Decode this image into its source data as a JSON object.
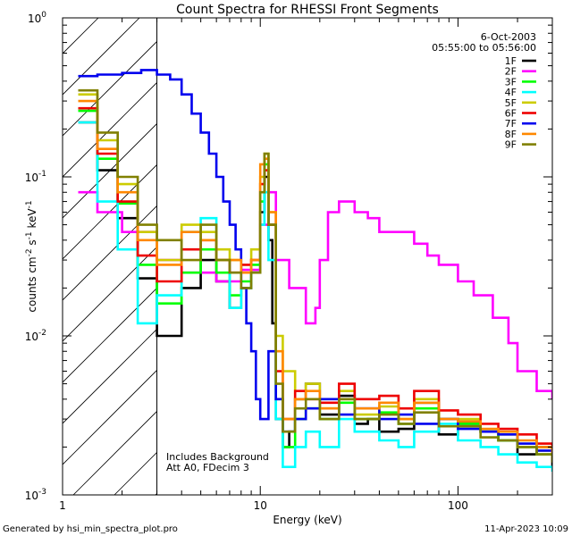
{
  "chart_data": {
    "type": "line",
    "title": "Count Spectra for RHESSI Front Segments",
    "xlabel": "Energy (keV)",
    "ylabel_parts": [
      "counts cm",
      "-2",
      " s",
      "-1",
      " keV",
      "-1"
    ],
    "xscale": "log",
    "yscale": "log",
    "xlim": [
      1,
      300
    ],
    "ylim": [
      0.001,
      1
    ],
    "x_ticks": [
      {
        "value": 1,
        "label": "1"
      },
      {
        "value": 10,
        "label": "10"
      },
      {
        "value": 100,
        "label": "100"
      }
    ],
    "y_ticks": [
      {
        "value": 0.001,
        "base": "10",
        "exp": "-3"
      },
      {
        "value": 0.01,
        "base": "10",
        "exp": "-2"
      },
      {
        "value": 0.1,
        "base": "10",
        "exp": "-1"
      },
      {
        "value": 1,
        "base": "10",
        "exp": "0"
      }
    ],
    "date": "6-Oct-2003",
    "time_range": "05:55:00 to 05:56:00",
    "attenuator_cutoff_keV": 3,
    "annotations": [
      "Includes Background",
      "Att A0, FDecim 3"
    ],
    "footer_left": "Generated by hsi_min_spectra_plot.pro",
    "footer_right": "11-Apr-2023 10:09",
    "legend_position": "top-right",
    "series": [
      {
        "name": "1F",
        "color": "#000000",
        "x": [
          1.2,
          1.5,
          1.9,
          2.4,
          3,
          4,
          5,
          6,
          7,
          8,
          9,
          10,
          10.5,
          11,
          11.5,
          12,
          13,
          14,
          15,
          17,
          20,
          25,
          30,
          35,
          40,
          50,
          60,
          80,
          100,
          130,
          160,
          200,
          250,
          300
        ],
        "values": [
          0.22,
          0.11,
          0.055,
          0.023,
          0.01,
          0.02,
          0.03,
          0.022,
          0.015,
          0.02,
          0.025,
          0.06,
          0.1,
          0.04,
          0.012,
          0.003,
          0.002,
          0.0025,
          0.004,
          0.005,
          0.0032,
          0.0042,
          0.0028,
          0.003,
          0.0025,
          0.0026,
          0.0038,
          0.0024,
          0.0028,
          0.0025,
          0.0022,
          0.0018,
          0.002,
          0.0015
        ]
      },
      {
        "name": "2F",
        "color": "#ff00ff",
        "x": [
          1.2,
          1.5,
          2,
          3,
          4,
          6,
          8,
          10,
          11,
          12,
          14,
          17,
          19,
          20,
          22,
          25,
          30,
          35,
          40,
          50,
          60,
          70,
          80,
          100,
          120,
          150,
          180,
          200,
          250,
          300
        ],
        "values": [
          0.08,
          0.06,
          0.045,
          0.03,
          0.025,
          0.022,
          0.026,
          0.05,
          0.08,
          0.03,
          0.02,
          0.012,
          0.015,
          0.03,
          0.06,
          0.07,
          0.06,
          0.055,
          0.045,
          0.045,
          0.038,
          0.032,
          0.028,
          0.022,
          0.018,
          0.013,
          0.009,
          0.006,
          0.0045,
          0.004
        ]
      },
      {
        "name": "3F",
        "color": "#00ff00",
        "x": [
          1.2,
          1.5,
          1.9,
          2.4,
          3,
          4,
          5,
          6,
          7,
          8,
          9,
          10,
          10.5,
          11,
          12,
          13,
          15,
          17,
          20,
          25,
          30,
          40,
          50,
          60,
          80,
          100,
          130,
          160,
          200,
          250,
          300
        ],
        "values": [
          0.26,
          0.13,
          0.068,
          0.028,
          0.016,
          0.025,
          0.035,
          0.025,
          0.018,
          0.022,
          0.028,
          0.07,
          0.12,
          0.05,
          0.004,
          0.002,
          0.003,
          0.0035,
          0.003,
          0.0038,
          0.003,
          0.0033,
          0.0028,
          0.0035,
          0.003,
          0.0028,
          0.0025,
          0.0022,
          0.002,
          0.0018,
          0.0017
        ]
      },
      {
        "name": "4F",
        "color": "#00ffff",
        "x": [
          1.2,
          1.5,
          1.9,
          2.4,
          3,
          4,
          5,
          6,
          7,
          8,
          9,
          10,
          10.5,
          11,
          12,
          13,
          15,
          17,
          20,
          25,
          30,
          40,
          50,
          60,
          80,
          100,
          130,
          160,
          200,
          250,
          300
        ],
        "values": [
          0.22,
          0.07,
          0.035,
          0.012,
          0.018,
          0.045,
          0.055,
          0.03,
          0.015,
          0.02,
          0.025,
          0.05,
          0.08,
          0.03,
          0.003,
          0.0015,
          0.002,
          0.0025,
          0.002,
          0.003,
          0.0025,
          0.0022,
          0.002,
          0.0025,
          0.0028,
          0.0022,
          0.002,
          0.0018,
          0.0016,
          0.0015,
          0.0014
        ]
      },
      {
        "name": "5F",
        "color": "#cccc00",
        "x": [
          1.2,
          1.5,
          1.9,
          2.4,
          3,
          4,
          5,
          6,
          7,
          8,
          9,
          10,
          10.5,
          11,
          12,
          13,
          15,
          17,
          20,
          25,
          30,
          40,
          50,
          60,
          80,
          100,
          130,
          160,
          200,
          250,
          300
        ],
        "values": [
          0.33,
          0.17,
          0.09,
          0.045,
          0.03,
          0.05,
          0.045,
          0.035,
          0.03,
          0.025,
          0.035,
          0.1,
          0.14,
          0.06,
          0.01,
          0.006,
          0.004,
          0.005,
          0.0035,
          0.0045,
          0.0032,
          0.0036,
          0.003,
          0.004,
          0.003,
          0.003,
          0.0025,
          0.0024,
          0.002,
          0.0019,
          0.0018
        ]
      },
      {
        "name": "6F",
        "color": "#ee0000",
        "x": [
          1.2,
          1.5,
          1.9,
          2.4,
          3,
          4,
          5,
          6,
          7,
          8,
          9,
          10,
          10.5,
          11,
          12,
          13,
          15,
          17,
          20,
          25,
          30,
          40,
          50,
          60,
          80,
          100,
          130,
          160,
          200,
          250,
          300
        ],
        "values": [
          0.27,
          0.14,
          0.07,
          0.032,
          0.022,
          0.035,
          0.04,
          0.03,
          0.025,
          0.028,
          0.03,
          0.09,
          0.11,
          0.05,
          0.006,
          0.003,
          0.0045,
          0.004,
          0.0038,
          0.005,
          0.004,
          0.0042,
          0.0035,
          0.0045,
          0.0034,
          0.0032,
          0.0028,
          0.0026,
          0.0024,
          0.0021,
          0.0019
        ]
      },
      {
        "name": "7F",
        "color": "#0000ee",
        "x": [
          1.2,
          1.5,
          2,
          2.5,
          3,
          3.5,
          4,
          4.5,
          5,
          5.5,
          6,
          6.5,
          7,
          7.5,
          8,
          8.5,
          9,
          9.5,
          10,
          11,
          12,
          13,
          15,
          17,
          20,
          25,
          30,
          40,
          50,
          60,
          80,
          100,
          130,
          160,
          200,
          250,
          300
        ],
        "values": [
          0.43,
          0.44,
          0.45,
          0.47,
          0.44,
          0.41,
          0.33,
          0.25,
          0.19,
          0.14,
          0.1,
          0.07,
          0.05,
          0.035,
          0.02,
          0.012,
          0.008,
          0.004,
          0.003,
          0.008,
          0.004,
          0.0025,
          0.003,
          0.0035,
          0.004,
          0.0032,
          0.0035,
          0.003,
          0.0032,
          0.0028,
          0.003,
          0.0026,
          0.0025,
          0.0024,
          0.0021,
          0.0019,
          0.0017
        ]
      },
      {
        "name": "8F",
        "color": "#ff8800",
        "x": [
          1.2,
          1.5,
          1.9,
          2.4,
          3,
          4,
          5,
          6,
          7,
          8,
          9,
          10,
          10.5,
          11,
          12,
          13,
          15,
          17,
          20,
          25,
          30,
          40,
          50,
          60,
          80,
          100,
          130,
          160,
          200,
          250,
          300
        ],
        "values": [
          0.3,
          0.15,
          0.08,
          0.04,
          0.028,
          0.045,
          0.04,
          0.03,
          0.03,
          0.025,
          0.03,
          0.12,
          0.13,
          0.06,
          0.008,
          0.003,
          0.004,
          0.0045,
          0.0035,
          0.004,
          0.0035,
          0.0038,
          0.003,
          0.0038,
          0.003,
          0.0029,
          0.0026,
          0.0025,
          0.0022,
          0.002,
          0.0017
        ]
      },
      {
        "name": "9F",
        "color": "#808000",
        "x": [
          1.2,
          1.5,
          1.9,
          2.4,
          3,
          4,
          5,
          6,
          7,
          8,
          9,
          10,
          10.5,
          11,
          12,
          13,
          15,
          17,
          20,
          25,
          30,
          40,
          50,
          60,
          80,
          100,
          130,
          160,
          200,
          250,
          300
        ],
        "values": [
          0.35,
          0.19,
          0.1,
          0.05,
          0.04,
          0.03,
          0.05,
          0.03,
          0.025,
          0.02,
          0.025,
          0.08,
          0.14,
          0.05,
          0.005,
          0.0025,
          0.0035,
          0.004,
          0.003,
          0.004,
          0.003,
          0.0032,
          0.0028,
          0.0033,
          0.0027,
          0.0027,
          0.0023,
          0.0022,
          0.002,
          0.0018,
          0.0016
        ]
      }
    ]
  }
}
